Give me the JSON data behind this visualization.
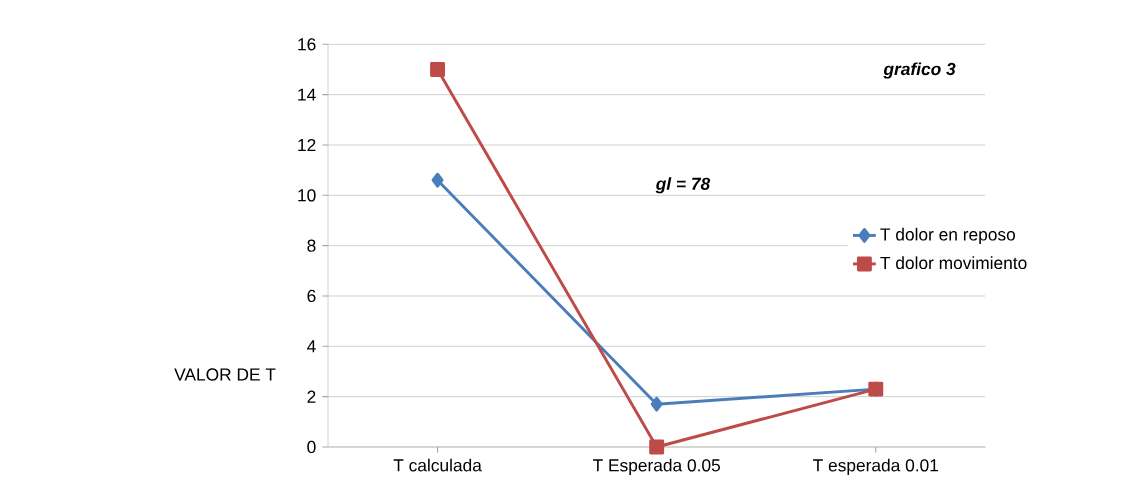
{
  "chart_data": {
    "type": "line",
    "categories": [
      "T calculada",
      "T Esperada  0.05",
      "T esperada 0.01"
    ],
    "series": [
      {
        "name": "T dolor en reposo",
        "color": "#4a7ebb",
        "values": [
          10.6,
          1.7,
          2.3
        ],
        "marker": "diamond"
      },
      {
        "name": "T dolor movimiento",
        "color": "#be4b48",
        "values": [
          15.0,
          0,
          2.3
        ],
        "marker": "square"
      }
    ],
    "ylabel": "VALOR DE T",
    "ylim": [
      0,
      16
    ],
    "yticks": [
      0,
      2,
      4,
      6,
      8,
      10,
      12,
      14,
      16
    ],
    "grid": "y",
    "legend": "right",
    "annotations": [
      "grafico 3",
      "gl = 78"
    ]
  }
}
